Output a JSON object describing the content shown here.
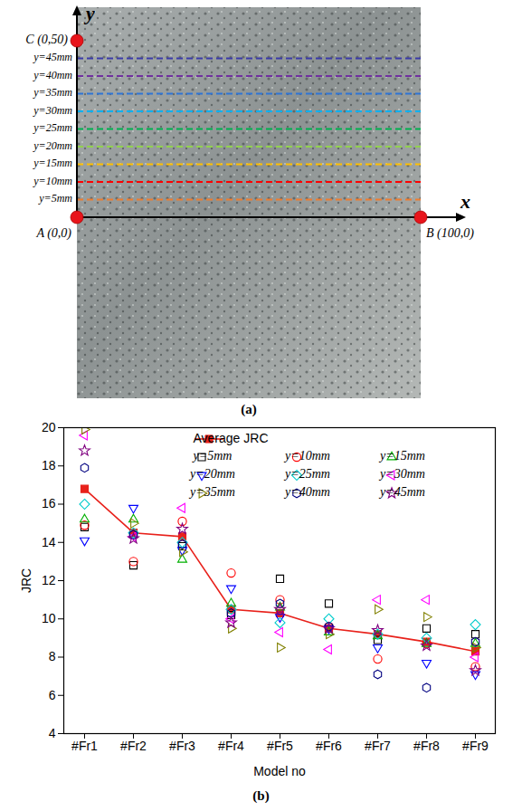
{
  "chart_data": [
    {
      "type": "diagram",
      "caption": "(a)",
      "x_label": "x",
      "y_label": "y",
      "xlim": [
        0,
        100
      ],
      "ylim": [
        0,
        50
      ],
      "points": [
        {
          "label": "A (0,0)",
          "x": 0,
          "y": 0
        },
        {
          "label": "B (100,0)",
          "x": 100,
          "y": 0
        },
        {
          "label": "C (0,50)",
          "x": 0,
          "y": 50
        }
      ],
      "point_color": "#e8141b",
      "lines": [
        {
          "label": "y=45mm",
          "y": 45,
          "color": "#3b3ba8"
        },
        {
          "label": "y=40mm",
          "y": 40,
          "color": "#7030a0"
        },
        {
          "label": "y=35mm",
          "y": 35,
          "color": "#2e75d6"
        },
        {
          "label": "y=30mm",
          "y": 30,
          "color": "#00b0f0"
        },
        {
          "label": "y=25mm",
          "y": 25,
          "color": "#00b050"
        },
        {
          "label": "y=20mm",
          "y": 20,
          "color": "#92d050"
        },
        {
          "label": "y=15mm",
          "y": 15,
          "color": "#ffc000"
        },
        {
          "label": "y=10mm",
          "y": 10,
          "color": "#ff0000"
        },
        {
          "label": "y=5mm",
          "y": 5,
          "color": "#ed7d31"
        }
      ],
      "line_style": "dashed"
    },
    {
      "type": "scatter",
      "caption": "(b)",
      "x_label": "Model no",
      "y_label": "JRC",
      "categories": [
        "#Fr1",
        "#Fr2",
        "#Fr3",
        "#Fr4",
        "#Fr5",
        "#Fr6",
        "#Fr7",
        "#Fr8",
        "#Fr9"
      ],
      "ylim": [
        4,
        20
      ],
      "yticks": [
        4,
        6,
        8,
        10,
        12,
        14,
        16,
        18,
        20
      ],
      "legend": "top-right",
      "series": [
        {
          "name": "Average JRC",
          "type": "line",
          "color": "#e8211b",
          "marker": "square",
          "line_style": "solid",
          "values": [
            16.8,
            14.5,
            14.3,
            10.5,
            10.3,
            9.5,
            9.2,
            8.8,
            8.3
          ]
        },
        {
          "name": "y=5mm",
          "type": "scatter",
          "color": "#000000",
          "marker": "square",
          "values": [
            14.8,
            12.8,
            13.8,
            10.2,
            12.1,
            10.8,
            8.9,
            9.5,
            9.2
          ]
        },
        {
          "name": "y=10mm",
          "type": "scatter",
          "color": "#ff0000",
          "marker": "circle",
          "values": [
            14.9,
            13.0,
            15.1,
            12.4,
            11.0,
            9.6,
            7.9,
            8.7,
            7.5
          ]
        },
        {
          "name": "y=15mm",
          "type": "scatter",
          "color": "#00b000",
          "marker": "triangle-up",
          "values": [
            15.2,
            15.2,
            13.1,
            10.8,
            10.6,
            9.3,
            9.1,
            8.7,
            8.7
          ]
        },
        {
          "name": "y=20mm",
          "type": "scatter",
          "color": "#0000ff",
          "marker": "triangle-down",
          "values": [
            14.1,
            15.8,
            13.6,
            11.6,
            10.1,
            9.5,
            8.5,
            7.7,
            7.1
          ]
        },
        {
          "name": "y=25mm",
          "type": "scatter",
          "color": "#00cccc",
          "marker": "diamond",
          "values": [
            16.0,
            14.5,
            14.0,
            10.5,
            9.8,
            10.0,
            9.2,
            9.0,
            9.7
          ]
        },
        {
          "name": "y=30mm",
          "type": "scatter",
          "color": "#ff00ff",
          "marker": "triangle-left",
          "values": [
            19.6,
            14.3,
            15.8,
            10.0,
            9.3,
            8.4,
            11.0,
            11.0,
            8.0
          ]
        },
        {
          "name": "y=35mm",
          "type": "scatter",
          "color": "#808000",
          "marker": "triangle-right",
          "values": [
            19.9,
            15.0,
            13.5,
            9.5,
            8.5,
            9.2,
            10.5,
            10.1,
            8.5
          ]
        },
        {
          "name": "y=40mm",
          "type": "scatter",
          "color": "#000080",
          "marker": "hexagon",
          "values": [
            17.9,
            14.4,
            13.9,
            10.3,
            10.8,
            9.6,
            7.1,
            6.4,
            8.8
          ]
        },
        {
          "name": "y=45mm",
          "type": "scatter",
          "color": "#800080",
          "marker": "star",
          "values": [
            18.8,
            14.2,
            14.7,
            9.8,
            10.5,
            9.5,
            9.4,
            8.6,
            7.3
          ]
        }
      ]
    }
  ]
}
